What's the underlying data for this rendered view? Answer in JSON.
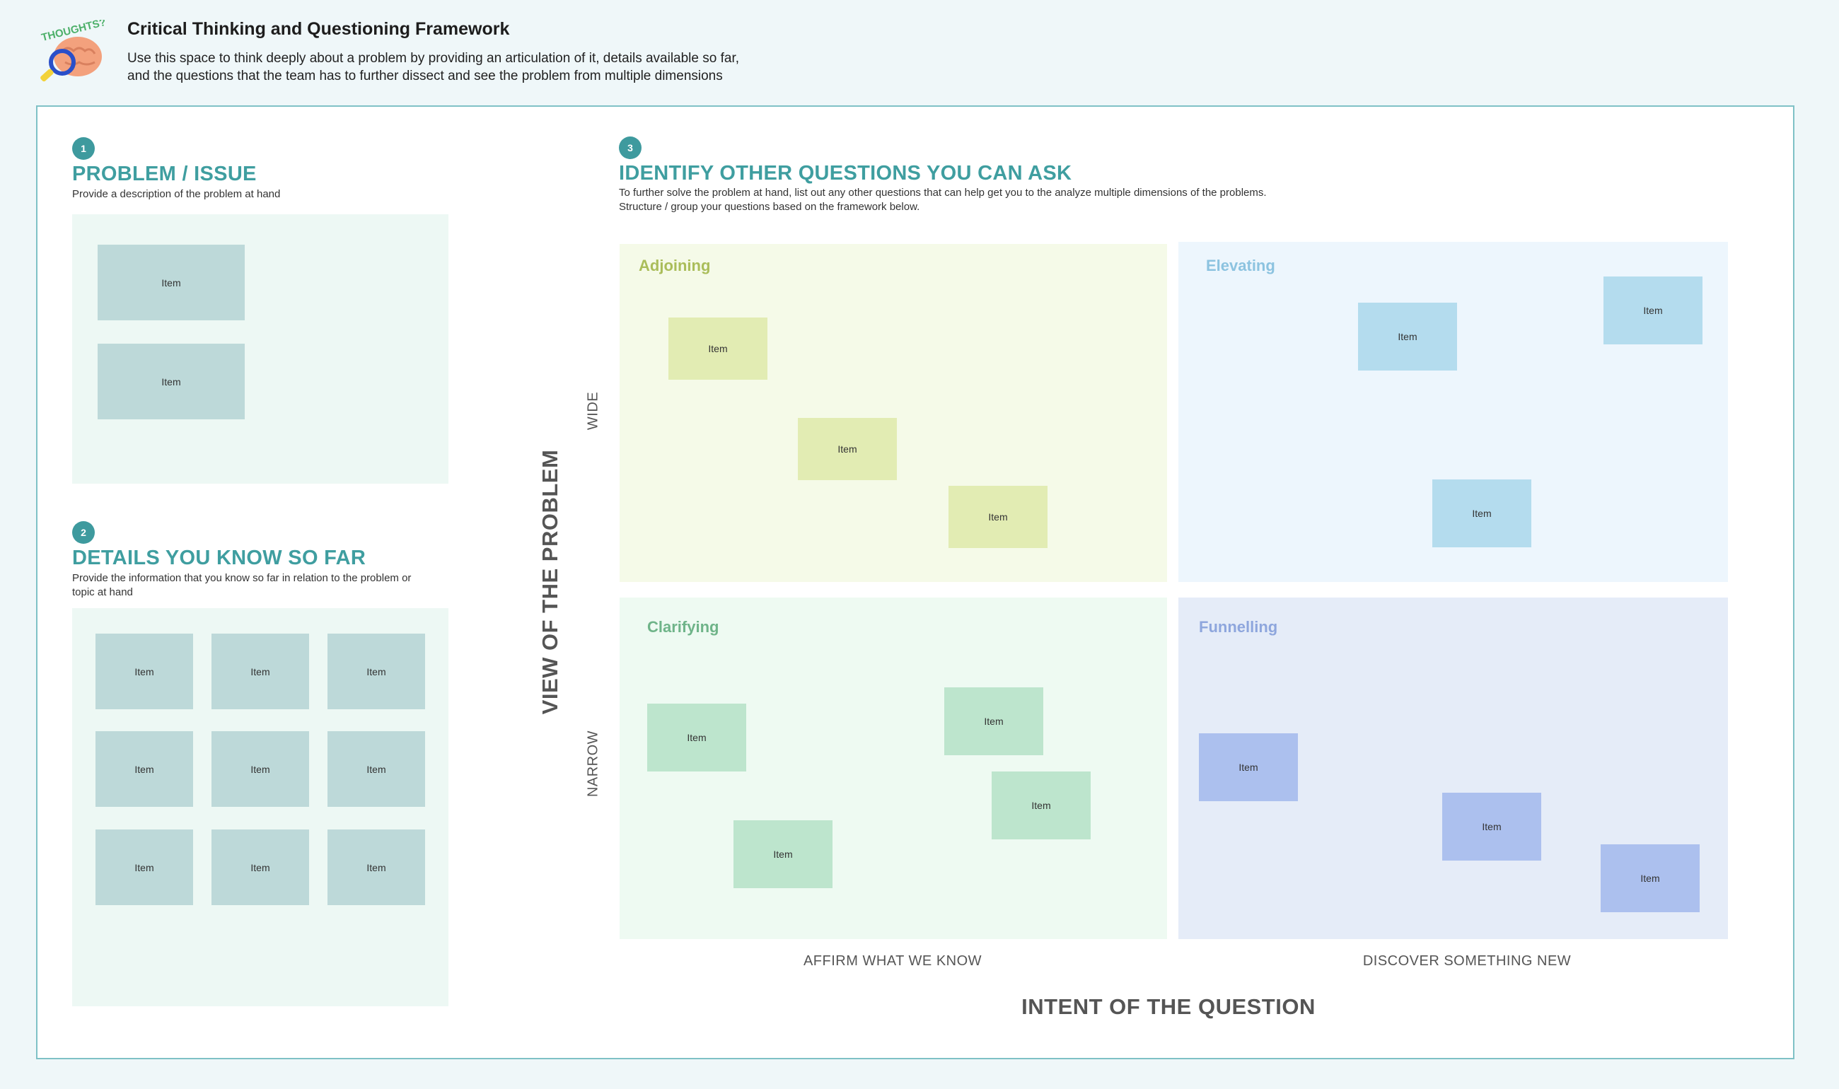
{
  "header": {
    "title": "Critical Thinking and Questioning Framework",
    "description_line1": "Use this space to think deeply about a problem by providing an articulation of it, details available so far,",
    "description_line2": "and the questions that the team has to further dissect and see the problem from multiple dimensions",
    "logo_text": "THOUGHTS?"
  },
  "section1": {
    "number": "1",
    "title": "PROBLEM / ISSUE",
    "description": "Provide a description of the problem at hand",
    "items": [
      "Item",
      "Item"
    ]
  },
  "section2": {
    "number": "2",
    "title": "DETAILS YOU KNOW SO FAR",
    "description_line1": "Provide the information that you know so far in relation to the problem or",
    "description_line2": "topic at hand",
    "items": [
      "Item",
      "Item",
      "Item",
      "Item",
      "Item",
      "Item",
      "Item",
      "Item",
      "Item"
    ]
  },
  "section3": {
    "number": "3",
    "title": "IDENTIFY OTHER QUESTIONS YOU CAN ASK",
    "description_line1": "To further solve the problem at hand, list out any other questions that can help get you to the analyze multiple dimensions of the problems.",
    "description_line2": "Structure / group your questions based on the framework below."
  },
  "quadrants": {
    "adjoining": {
      "label": "Adjoining",
      "color": "#aabd5a",
      "items": [
        "Item",
        "Item",
        "Item"
      ]
    },
    "elevating": {
      "label": "Elevating",
      "color": "#8cc3e0",
      "items": [
        "Item",
        "Item",
        "Item"
      ]
    },
    "clarifying": {
      "label": "Clarifying",
      "color": "#6fb489",
      "items": [
        "Item",
        "Item",
        "Item",
        "Item"
      ]
    },
    "funnelling": {
      "label": "Funnelling",
      "color": "#8ea6dd",
      "items": [
        "Item",
        "Item",
        "Item"
      ]
    }
  },
  "axes": {
    "y_title": "VIEW OF THE PROBLEM",
    "y_top": "WIDE",
    "y_bottom": "NARROW",
    "x_title": "INTENT OF THE QUESTION",
    "x_left": "AFFIRM WHAT WE KNOW",
    "x_right": "DISCOVER SOMETHING NEW"
  }
}
